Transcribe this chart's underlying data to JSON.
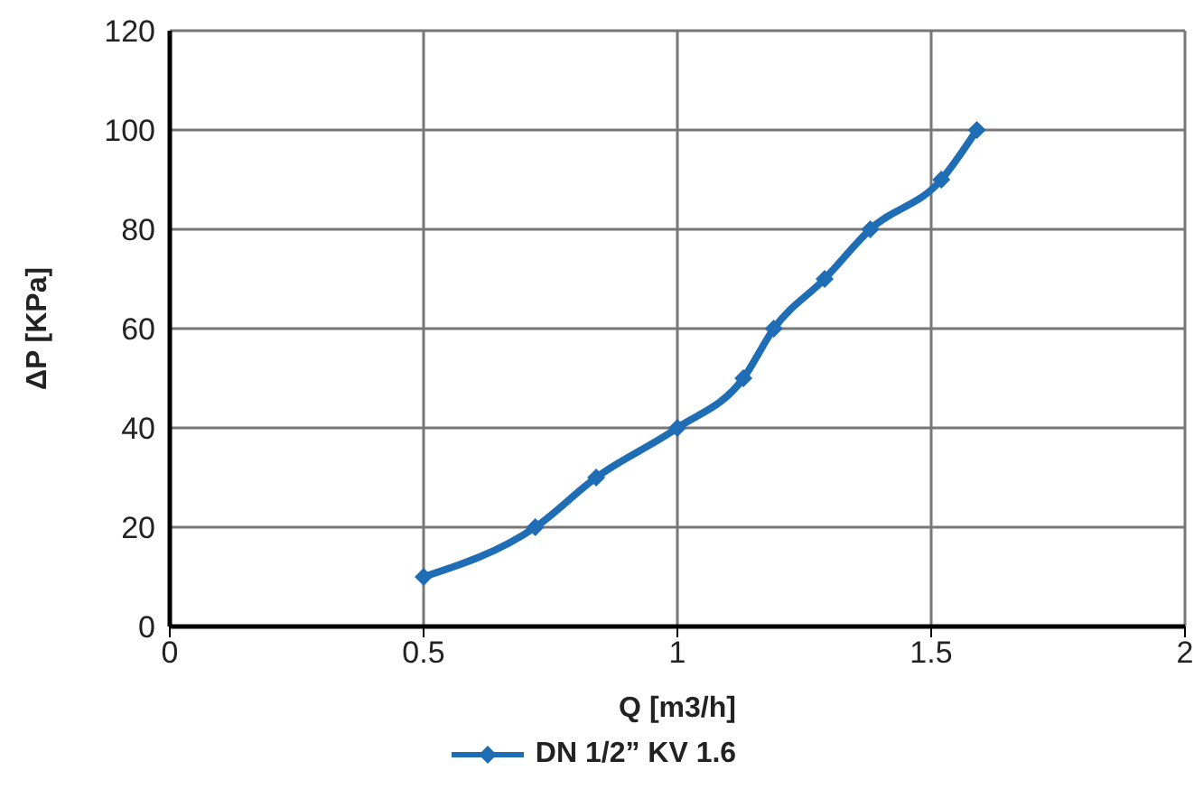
{
  "chart_data": {
    "type": "line",
    "xlabel": "Q [m3/h]",
    "ylabel": "ΔP [KPa]",
    "x": [
      0.5,
      0.72,
      0.84,
      1.0,
      1.13,
      1.19,
      1.29,
      1.38,
      1.52,
      1.59
    ],
    "series": [
      {
        "name": "DN 1/2” KV 1.6",
        "color": "#1f6db5",
        "values": [
          10,
          20,
          30,
          40,
          50,
          60,
          70,
          80,
          90,
          100
        ]
      }
    ],
    "xlim": [
      0,
      2
    ],
    "xticks": [
      0,
      0.5,
      1,
      1.5,
      2
    ],
    "ylim": [
      0,
      120
    ],
    "yticks": [
      0,
      20,
      40,
      60,
      80,
      100,
      120
    ],
    "grid": true,
    "legend": "bottom",
    "marker": "diamond",
    "line_style": "solid"
  }
}
